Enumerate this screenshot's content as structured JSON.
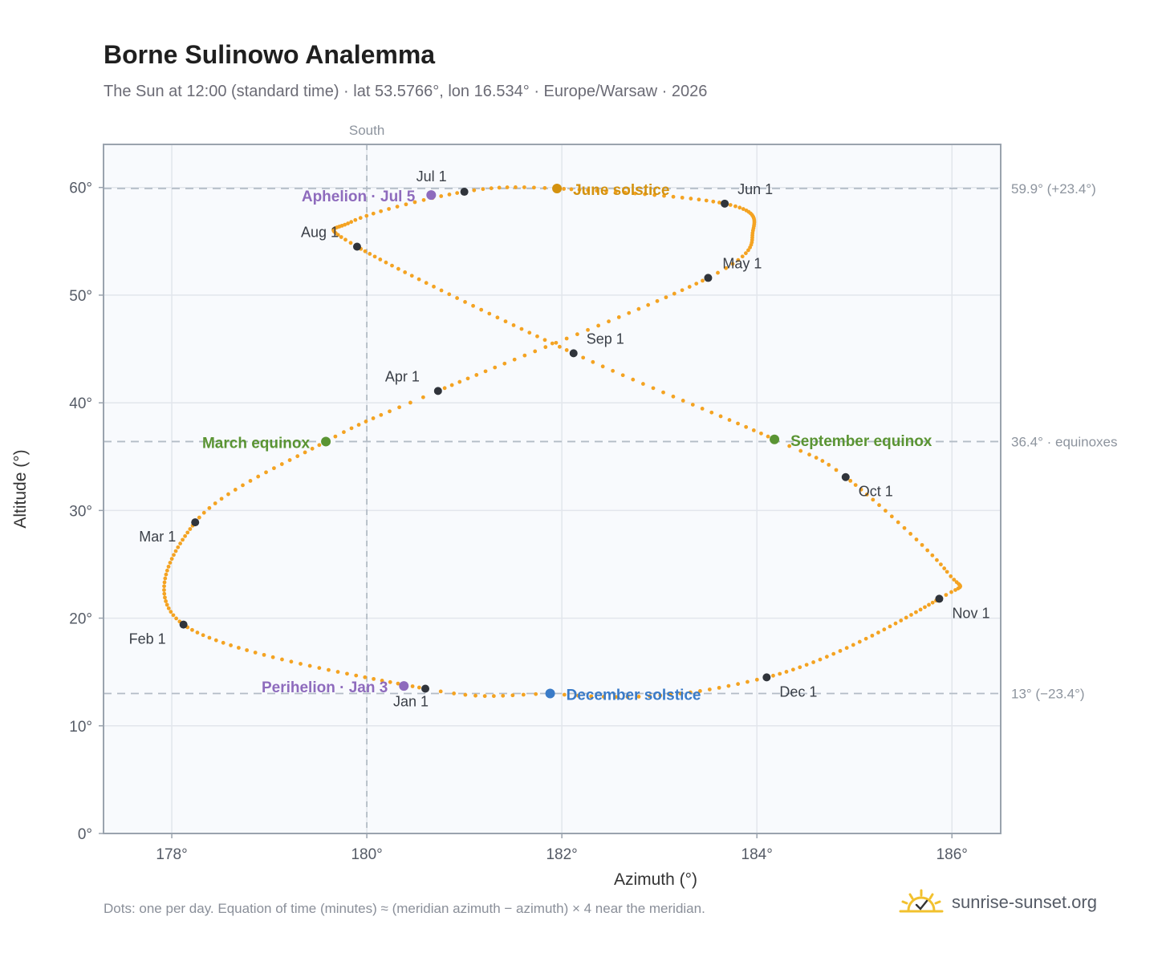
{
  "chart_data": {
    "type": "scatter",
    "title": "Borne Sulinowo Analemma",
    "subtitle": "The Sun at 12:00 (standard time) · lat 53.5766°, lon 16.534° · Europe/Warsaw · 2026",
    "xlabel": "Azimuth (°)",
    "ylabel": "Altitude (°)",
    "xlim": [
      177.3,
      186.5
    ],
    "ylim": [
      0,
      64
    ],
    "x_ticks": [
      178,
      180,
      182,
      184,
      186
    ],
    "x_tick_labels": [
      "178°",
      "180°",
      "182°",
      "184°",
      "186°"
    ],
    "y_ticks": [
      0,
      10,
      20,
      30,
      40,
      50,
      60
    ],
    "y_tick_labels": [
      "0°",
      "10°",
      "20°",
      "30°",
      "40°",
      "50°",
      "60°"
    ],
    "grid": true,
    "meridian": {
      "x": 180,
      "label": "South"
    },
    "reference_lines": [
      {
        "y": 59.9,
        "label": "59.9° (+23.4°)"
      },
      {
        "y": 36.4,
        "label": "36.4° · equinoxes"
      },
      {
        "y": 13.0,
        "label": "13° (−23.4°)"
      }
    ],
    "daily_points": {
      "description": "Dots: one per day",
      "color": "#f4a322"
    },
    "month_markers": [
      {
        "label": "Jan 1",
        "x": 180.6,
        "y": 13.45
      },
      {
        "label": "Feb 1",
        "x": 178.12,
        "y": 19.4
      },
      {
        "label": "Mar 1",
        "x": 178.24,
        "y": 28.9
      },
      {
        "label": "Apr 1",
        "x": 180.73,
        "y": 41.1
      },
      {
        "label": "May 1",
        "x": 183.5,
        "y": 51.6
      },
      {
        "label": "Jun 1",
        "x": 183.67,
        "y": 58.5
      },
      {
        "label": "Jul 1",
        "x": 181.0,
        "y": 59.6
      },
      {
        "label": "Aug 1",
        "x": 179.9,
        "y": 54.5
      },
      {
        "label": "Sep 1",
        "x": 182.12,
        "y": 44.6
      },
      {
        "label": "Oct 1",
        "x": 184.91,
        "y": 33.1
      },
      {
        "label": "Nov 1",
        "x": 185.87,
        "y": 21.8
      },
      {
        "label": "Dec 1",
        "x": 184.1,
        "y": 14.5
      }
    ],
    "events": [
      {
        "label": "June solstice",
        "x": 181.95,
        "y": 59.9,
        "color": "#d4920f"
      },
      {
        "label": "December solstice",
        "x": 181.88,
        "y": 13.0,
        "color": "#3a7bc8"
      },
      {
        "label": "March equinox",
        "x": 179.58,
        "y": 36.4,
        "color": "#5a9433"
      },
      {
        "label": "September equinox",
        "x": 184.18,
        "y": 36.6,
        "color": "#5a9433"
      },
      {
        "label": "Aphelion · Jul 5",
        "x": 180.66,
        "y": 59.3,
        "color": "#8e6bbd"
      },
      {
        "label": "Perihelion · Jan 3",
        "x": 180.38,
        "y": 13.7,
        "color": "#8e6bbd"
      }
    ]
  },
  "footnote": "Dots: one per day. Equation of time (minutes) ≈ (meridian azimuth − azimuth) × 4 near the meridian.",
  "brand": {
    "name": "sunrise-sunset.org",
    "logo_icon": "sun-check-icon"
  }
}
